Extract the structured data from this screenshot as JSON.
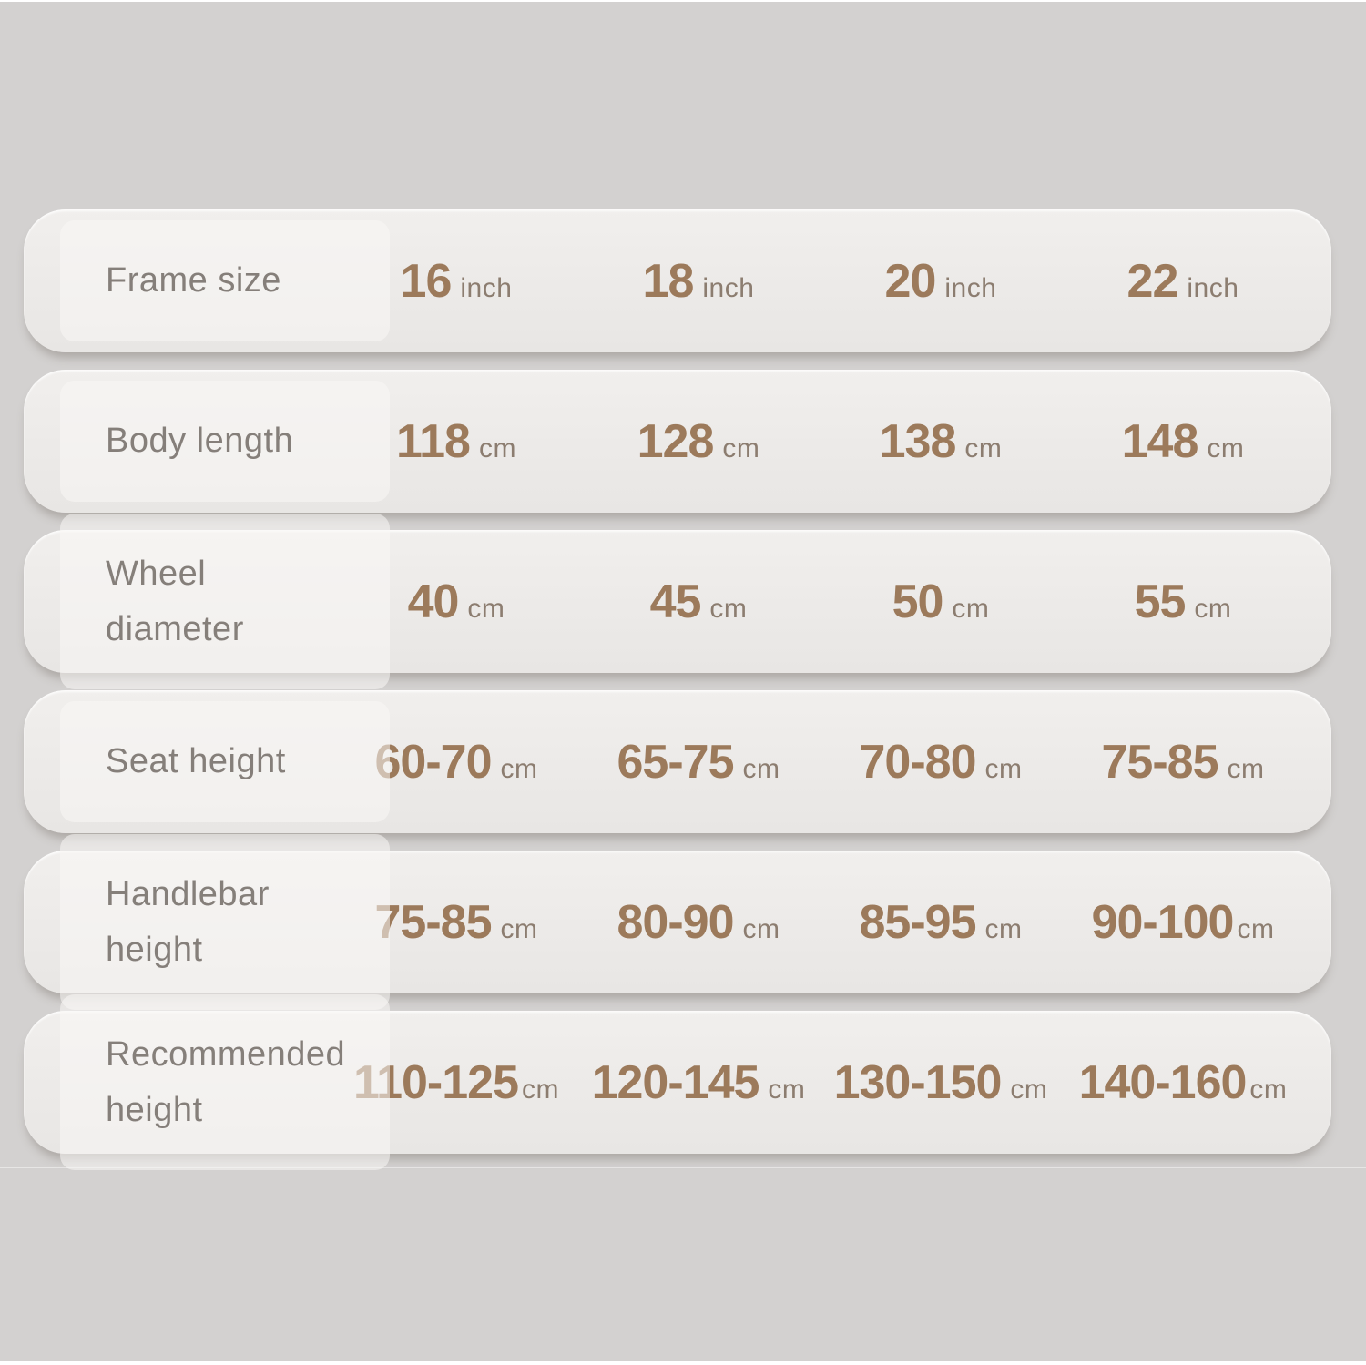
{
  "colors": {
    "background": "#d3d1d0",
    "pill": "#eceae8",
    "label_text": "#857f7a",
    "number_text": "#9c7a5b",
    "unit_text": "#8c7d70"
  },
  "table": {
    "rows": [
      {
        "label": "Frame size",
        "cells": [
          {
            "num": "16",
            "unit": "inch"
          },
          {
            "num": "18",
            "unit": "inch"
          },
          {
            "num": "20",
            "unit": "inch"
          },
          {
            "num": "22",
            "unit": "inch"
          }
        ]
      },
      {
        "label": "Body length",
        "cells": [
          {
            "num": "118",
            "unit": "cm"
          },
          {
            "num": "128",
            "unit": "cm"
          },
          {
            "num": "138",
            "unit": "cm"
          },
          {
            "num": "148",
            "unit": "cm"
          }
        ]
      },
      {
        "label": "Wheel diameter",
        "cells": [
          {
            "num": "40",
            "unit": "cm"
          },
          {
            "num": "45",
            "unit": "cm"
          },
          {
            "num": "50",
            "unit": "cm"
          },
          {
            "num": "55",
            "unit": "cm"
          }
        ]
      },
      {
        "label": "Seat height",
        "cells": [
          {
            "num": "60-70",
            "unit": "cm"
          },
          {
            "num": "65-75",
            "unit": "cm"
          },
          {
            "num": "70-80",
            "unit": "cm"
          },
          {
            "num": "75-85",
            "unit": "cm"
          }
        ]
      },
      {
        "label": "Handlebar height",
        "cells": [
          {
            "num": "75-85",
            "unit": "cm"
          },
          {
            "num": "80-90",
            "unit": "cm"
          },
          {
            "num": "85-95",
            "unit": "cm"
          },
          {
            "num": "90-100",
            "unit": "cm"
          }
        ]
      },
      {
        "label": "Recommended height",
        "cells": [
          {
            "num": "110-125",
            "unit": "cm"
          },
          {
            "num": "120-145",
            "unit": "cm"
          },
          {
            "num": "130-150",
            "unit": "cm"
          },
          {
            "num": "140-160",
            "unit": "cm"
          }
        ]
      }
    ]
  },
  "chart_data": {
    "type": "table",
    "row_headers": [
      "Frame size",
      "Body length",
      "Wheel diameter",
      "Seat height",
      "Handlebar height",
      "Recommended height"
    ],
    "rows": [
      [
        "16 inch",
        "18 inch",
        "20 inch",
        "22 inch"
      ],
      [
        "118 cm",
        "128 cm",
        "138 cm",
        "148 cm"
      ],
      [
        "40 cm",
        "45 cm",
        "50 cm",
        "55 cm"
      ],
      [
        "60-70 cm",
        "65-75 cm",
        "70-80 cm",
        "75-85 cm"
      ],
      [
        "75-85 cm",
        "80-90 cm",
        "85-95 cm",
        "90-100 cm"
      ],
      [
        "110-125 cm",
        "120-145 cm",
        "130-150 cm",
        "140-160 cm"
      ]
    ]
  }
}
